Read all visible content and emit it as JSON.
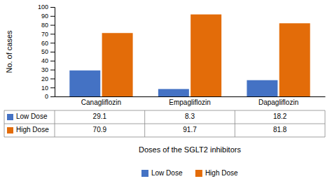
{
  "chart_data": {
    "type": "bar",
    "categories": [
      "Canagliflozin",
      "Empagliflozin",
      "Dapagliflozin"
    ],
    "series": [
      {
        "name": "Low Dose",
        "color": "#4472c4",
        "values": [
          29.1,
          8.3,
          18.2
        ]
      },
      {
        "name": "High Dose",
        "color": "#e36c09",
        "values": [
          70.9,
          91.7,
          81.8
        ]
      }
    ],
    "ylabel": "No. of cases",
    "xlabel": "Doses of the SGLT2 inhibitors",
    "ylim": [
      0,
      100
    ],
    "yticks": [
      0,
      10,
      20,
      30,
      40,
      50,
      60,
      70,
      80,
      90,
      100
    ],
    "grid": false,
    "legend": "bottom",
    "data_labels": true
  }
}
